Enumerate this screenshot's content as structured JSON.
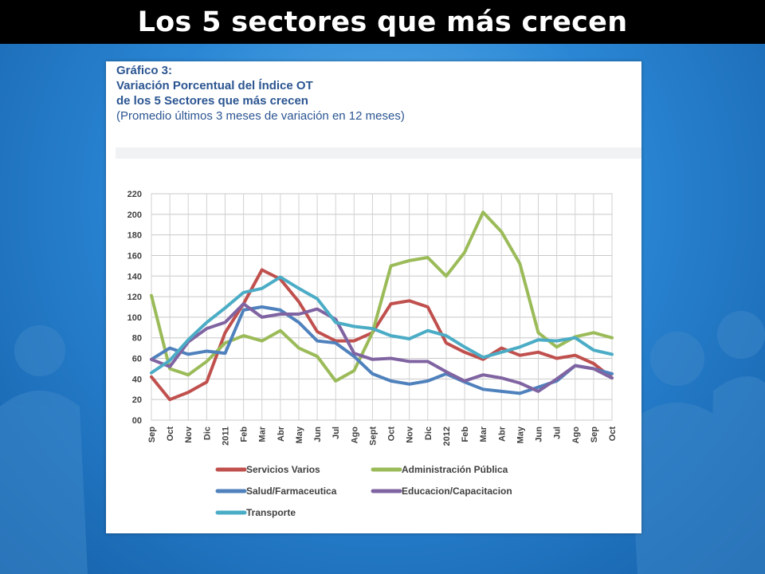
{
  "slide": {
    "title": "Los 5 sectores que más crecen"
  },
  "chart_header": {
    "label": "Gráfico 3:",
    "line1": "Variación Porcentual del Índice OT",
    "line2": "de los 5 Sectores que más crecen",
    "subtitle": "(Promedio últimos 3 meses de variación en 12 meses)"
  },
  "chart_data": {
    "type": "line",
    "categories": [
      "Sep",
      "Oct",
      "Nov",
      "Dic",
      "2011",
      "Feb",
      "Mar",
      "Abr",
      "May",
      "Jun",
      "Jul",
      "Ago",
      "Sept",
      "Oct",
      "Nov",
      "Dic",
      "2012",
      "Feb",
      "Mar",
      "Abr",
      "May",
      "Jun",
      "Jul",
      "Ago",
      "Sep",
      "Oct"
    ],
    "ylim": [
      0,
      220
    ],
    "yticks": [
      "00",
      "20",
      "40",
      "60",
      "80",
      "100",
      "120",
      "140",
      "160",
      "180",
      "200",
      "220"
    ],
    "grid": true,
    "legend_position": "bottom",
    "series": [
      {
        "name": "Servicios Varios",
        "color": "#c0504d",
        "values": [
          42,
          20,
          27,
          37,
          85,
          113,
          146,
          137,
          115,
          86,
          77,
          77,
          85,
          113,
          116,
          110,
          75,
          66,
          59,
          70,
          63,
          66,
          60,
          63,
          55,
          41
        ]
      },
      {
        "name": "Administración Pública",
        "color": "#9bbb59",
        "values": [
          121,
          50,
          44,
          57,
          75,
          82,
          77,
          87,
          70,
          62,
          38,
          48,
          85,
          150,
          155,
          158,
          140,
          163,
          202,
          183,
          152,
          85,
          71,
          81,
          85,
          80
        ]
      },
      {
        "name": "Salud/Farmaceutica",
        "color": "#4f81bd",
        "values": [
          59,
          70,
          64,
          67,
          65,
          107,
          110,
          107,
          95,
          77,
          75,
          62,
          45,
          38,
          35,
          38,
          45,
          37,
          30,
          28,
          26,
          32,
          38,
          53,
          50,
          45
        ]
      },
      {
        "name": "Educacion/Capacitacion",
        "color": "#8064a2",
        "values": [
          59,
          52,
          76,
          89,
          95,
          113,
          100,
          103,
          103,
          108,
          98,
          65,
          59,
          60,
          57,
          57,
          47,
          38,
          44,
          41,
          36,
          28,
          40,
          53,
          50,
          41
        ]
      },
      {
        "name": "Transporte",
        "color": "#4bacc6",
        "values": [
          46,
          58,
          78,
          95,
          109,
          124,
          128,
          139,
          128,
          118,
          95,
          91,
          89,
          82,
          79,
          87,
          82,
          71,
          61,
          66,
          71,
          78,
          77,
          80,
          68,
          64
        ]
      }
    ]
  }
}
